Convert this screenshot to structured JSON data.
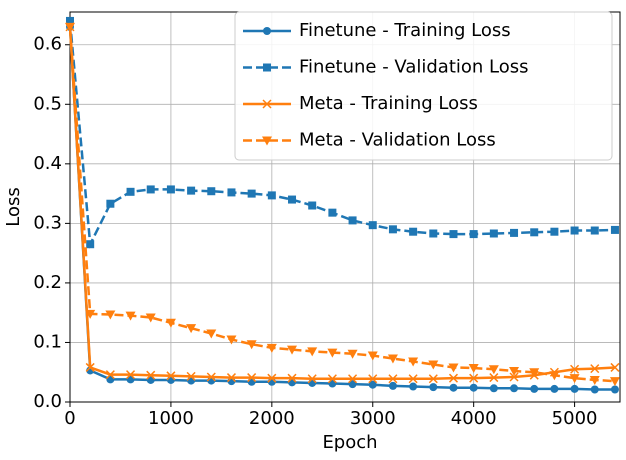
{
  "chart_data": {
    "type": "line",
    "x_label": "Epoch",
    "y_label": "Loss",
    "x": [
      0,
      200,
      400,
      600,
      800,
      1000,
      1200,
      1400,
      1600,
      1800,
      2000,
      2200,
      2400,
      2600,
      2800,
      3000,
      3200,
      3400,
      3600,
      3800,
      4000,
      4200,
      4400,
      4600,
      4800,
      5000,
      5200,
      5400
    ],
    "series": [
      {
        "name": "Finetune - Training Loss",
        "color": "#1f77b4",
        "marker": "circle",
        "linestyle": "solid",
        "values": [
          0.63,
          0.053,
          0.038,
          0.038,
          0.037,
          0.037,
          0.036,
          0.036,
          0.035,
          0.034,
          0.034,
          0.033,
          0.032,
          0.031,
          0.03,
          0.029,
          0.027,
          0.026,
          0.025,
          0.024,
          0.024,
          0.023,
          0.023,
          0.022,
          0.022,
          0.022,
          0.021,
          0.021
        ]
      },
      {
        "name": "Finetune - Validation Loss",
        "color": "#1f77b4",
        "marker": "square",
        "linestyle": "dashed",
        "values": [
          0.64,
          0.265,
          0.333,
          0.353,
          0.357,
          0.357,
          0.355,
          0.354,
          0.352,
          0.35,
          0.347,
          0.34,
          0.33,
          0.318,
          0.305,
          0.297,
          0.29,
          0.286,
          0.283,
          0.282,
          0.282,
          0.283,
          0.284,
          0.285,
          0.286,
          0.288,
          0.288,
          0.289
        ]
      },
      {
        "name": "Meta - Training Loss",
        "color": "#ff7f0e",
        "marker": "x",
        "linestyle": "solid",
        "values": [
          0.63,
          0.058,
          0.046,
          0.046,
          0.045,
          0.044,
          0.043,
          0.042,
          0.041,
          0.041,
          0.04,
          0.04,
          0.039,
          0.039,
          0.039,
          0.039,
          0.039,
          0.039,
          0.039,
          0.04,
          0.04,
          0.041,
          0.042,
          0.045,
          0.05,
          0.055,
          0.056,
          0.058
        ]
      },
      {
        "name": "Meta - Validation Loss",
        "color": "#ff7f0e",
        "marker": "triangle-down",
        "linestyle": "dashed",
        "values": [
          0.63,
          0.148,
          0.147,
          0.145,
          0.142,
          0.133,
          0.124,
          0.115,
          0.105,
          0.097,
          0.091,
          0.088,
          0.085,
          0.083,
          0.081,
          0.078,
          0.073,
          0.068,
          0.063,
          0.058,
          0.057,
          0.055,
          0.052,
          0.05,
          0.045,
          0.04,
          0.037,
          0.035
        ]
      }
    ],
    "xlim": [
      0,
      5450
    ],
    "xticks": [
      0,
      1000,
      2000,
      3000,
      4000,
      5000
    ],
    "ylim": [
      0,
      0.655
    ],
    "yticks": [
      {
        "value": 0,
        "label": "0.0"
      },
      0.1,
      0.2,
      0.3,
      0.4,
      0.5,
      0.6
    ],
    "grid": true,
    "legend": "upper right"
  }
}
